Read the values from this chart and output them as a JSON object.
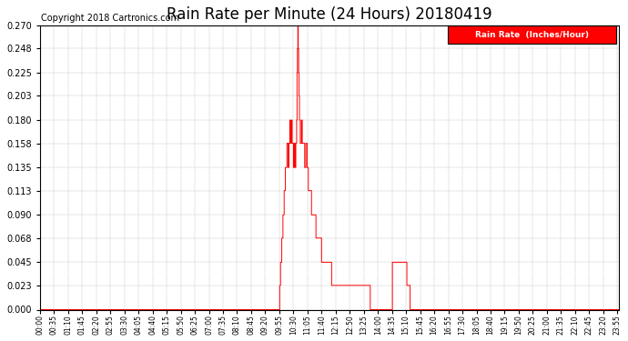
{
  "title": "Rain Rate per Minute (24 Hours) 20180419",
  "copyright_text": "Copyright 2018 Cartronics.com",
  "legend_label": "Rain Rate  (Inches/Hour)",
  "legend_bg": "#ff0000",
  "legend_text_color": "#ffffff",
  "line_color": "#ff0000",
  "bg_color": "#ffffff",
  "grid_color": "#999999",
  "ylim": [
    0.0,
    0.27
  ],
  "yticks": [
    0.0,
    0.023,
    0.045,
    0.068,
    0.09,
    0.113,
    0.135,
    0.158,
    0.18,
    0.203,
    0.225,
    0.248,
    0.27
  ],
  "title_fontsize": 12,
  "copyright_fontsize": 7,
  "xlabel_fontsize": 5.5,
  "ylabel_fontsize": 7,
  "tick_interval_min": 35,
  "total_minutes": 1440
}
